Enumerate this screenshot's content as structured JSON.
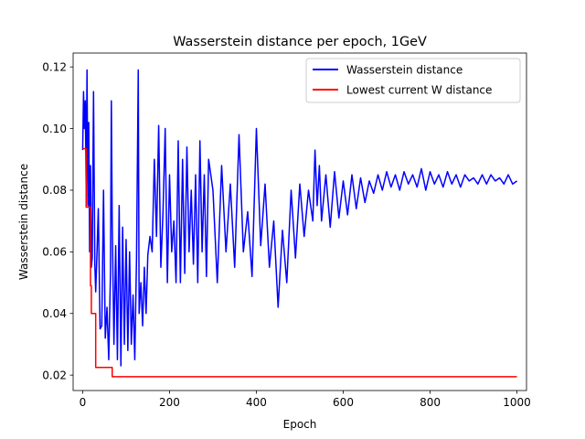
{
  "chart_data": {
    "type": "line",
    "title": "Wasserstein distance per epoch, 1GeV",
    "xlabel": "Epoch",
    "ylabel": "Wasserstein distance",
    "xlim": [
      -22,
      1022
    ],
    "ylim": [
      0.015,
      0.1245
    ],
    "xticks": [
      0,
      200,
      400,
      600,
      800,
      1000
    ],
    "yticks": [
      0.02,
      0.04,
      0.06,
      0.08,
      0.1,
      0.12
    ],
    "ytick_labels": [
      "0.02",
      "0.04",
      "0.06",
      "0.08",
      "0.10",
      "0.12"
    ],
    "grid": false,
    "legend_position": "top-right",
    "series": [
      {
        "name": "Wasserstein distance",
        "color": "#0000ff",
        "x": [
          0,
          2,
          4,
          6,
          8,
          10,
          12,
          14,
          16,
          18,
          20,
          22,
          25,
          28,
          30,
          33,
          36,
          40,
          44,
          48,
          52,
          56,
          60,
          64,
          66,
          68,
          72,
          76,
          80,
          84,
          88,
          92,
          96,
          100,
          104,
          108,
          112,
          116,
          120,
          124,
          128,
          130,
          134,
          138,
          142,
          146,
          150,
          155,
          160,
          165,
          170,
          175,
          180,
          185,
          190,
          195,
          200,
          205,
          210,
          215,
          220,
          225,
          230,
          235,
          240,
          245,
          250,
          255,
          260,
          265,
          270,
          275,
          280,
          285,
          290,
          300,
          310,
          320,
          330,
          340,
          350,
          360,
          370,
          380,
          390,
          400,
          410,
          420,
          430,
          440,
          450,
          460,
          470,
          480,
          490,
          500,
          510,
          520,
          530,
          535,
          540,
          545,
          550,
          560,
          570,
          580,
          590,
          600,
          610,
          620,
          630,
          640,
          650,
          660,
          670,
          680,
          690,
          700,
          710,
          720,
          730,
          740,
          750,
          760,
          770,
          780,
          790,
          800,
          810,
          820,
          830,
          840,
          850,
          860,
          870,
          880,
          890,
          900,
          910,
          920,
          930,
          940,
          950,
          960,
          970,
          980,
          990,
          1000
        ],
        "values": [
          0.093,
          0.112,
          0.1,
          0.109,
          0.081,
          0.119,
          0.075,
          0.102,
          0.06,
          0.088,
          0.055,
          0.058,
          0.112,
          0.056,
          0.047,
          0.06,
          0.074,
          0.035,
          0.036,
          0.08,
          0.032,
          0.042,
          0.025,
          0.053,
          0.109,
          0.07,
          0.03,
          0.062,
          0.025,
          0.075,
          0.023,
          0.068,
          0.03,
          0.064,
          0.028,
          0.06,
          0.03,
          0.046,
          0.025,
          0.058,
          0.119,
          0.04,
          0.05,
          0.036,
          0.055,
          0.04,
          0.059,
          0.065,
          0.06,
          0.09,
          0.065,
          0.101,
          0.055,
          0.073,
          0.1,
          0.05,
          0.085,
          0.06,
          0.07,
          0.05,
          0.096,
          0.05,
          0.09,
          0.053,
          0.094,
          0.06,
          0.08,
          0.056,
          0.085,
          0.05,
          0.096,
          0.06,
          0.085,
          0.052,
          0.09,
          0.08,
          0.05,
          0.088,
          0.06,
          0.082,
          0.055,
          0.098,
          0.06,
          0.073,
          0.052,
          0.1,
          0.062,
          0.082,
          0.055,
          0.07,
          0.042,
          0.067,
          0.05,
          0.08,
          0.058,
          0.082,
          0.065,
          0.08,
          0.07,
          0.093,
          0.075,
          0.088,
          0.07,
          0.085,
          0.068,
          0.086,
          0.071,
          0.083,
          0.072,
          0.085,
          0.074,
          0.084,
          0.076,
          0.083,
          0.079,
          0.085,
          0.08,
          0.086,
          0.081,
          0.085,
          0.08,
          0.086,
          0.082,
          0.085,
          0.081,
          0.087,
          0.08,
          0.086,
          0.082,
          0.085,
          0.081,
          0.086,
          0.082,
          0.085,
          0.081,
          0.085,
          0.083,
          0.084,
          0.082,
          0.085,
          0.082,
          0.085,
          0.083,
          0.084,
          0.082,
          0.085,
          0.082,
          0.083
        ]
      },
      {
        "name": "Lowest current W distance",
        "color": "#ff0000",
        "x": [
          0,
          8,
          8,
          18,
          18,
          20,
          20,
          30,
          30,
          68,
          68,
          1000
        ],
        "values": [
          0.0935,
          0.0935,
          0.0745,
          0.0745,
          0.049,
          0.049,
          0.04,
          0.04,
          0.0225,
          0.0225,
          0.0195,
          0.0195
        ]
      }
    ]
  }
}
